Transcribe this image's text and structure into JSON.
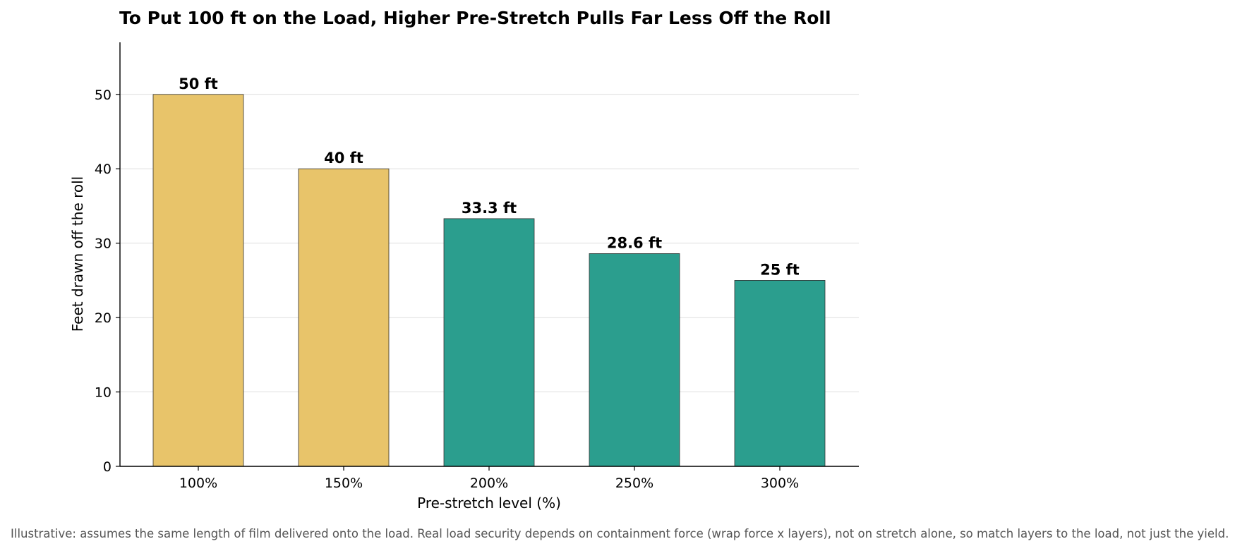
{
  "chart_data": {
    "type": "bar",
    "title": "To Put 100 ft on the Load, Higher Pre-Stretch Pulls Far Less Off the Roll",
    "xlabel": "Pre-stretch level (%)",
    "ylabel": "Feet drawn off the roll",
    "categories": [
      "100%",
      "150%",
      "200%",
      "250%",
      "300%"
    ],
    "values": [
      50,
      40,
      33.3,
      28.6,
      25
    ],
    "data_labels": [
      "50 ft",
      "40 ft",
      "33.3 ft",
      "28.6 ft",
      "25 ft"
    ],
    "bar_colors": [
      "#e8c46a",
      "#e8c46a",
      "#2b9e8e",
      "#2b9e8e",
      "#2b9e8e"
    ],
    "ylim": [
      0,
      57
    ],
    "yticks": [
      0,
      10,
      20,
      30,
      40,
      50
    ],
    "grid": "horizontal",
    "legend": "none"
  },
  "footnote": "Illustrative: assumes the same length of film delivered onto the load. Real load security depends on containment force (wrap force x layers), not on stretch alone, so match layers to the load, not just the yield."
}
